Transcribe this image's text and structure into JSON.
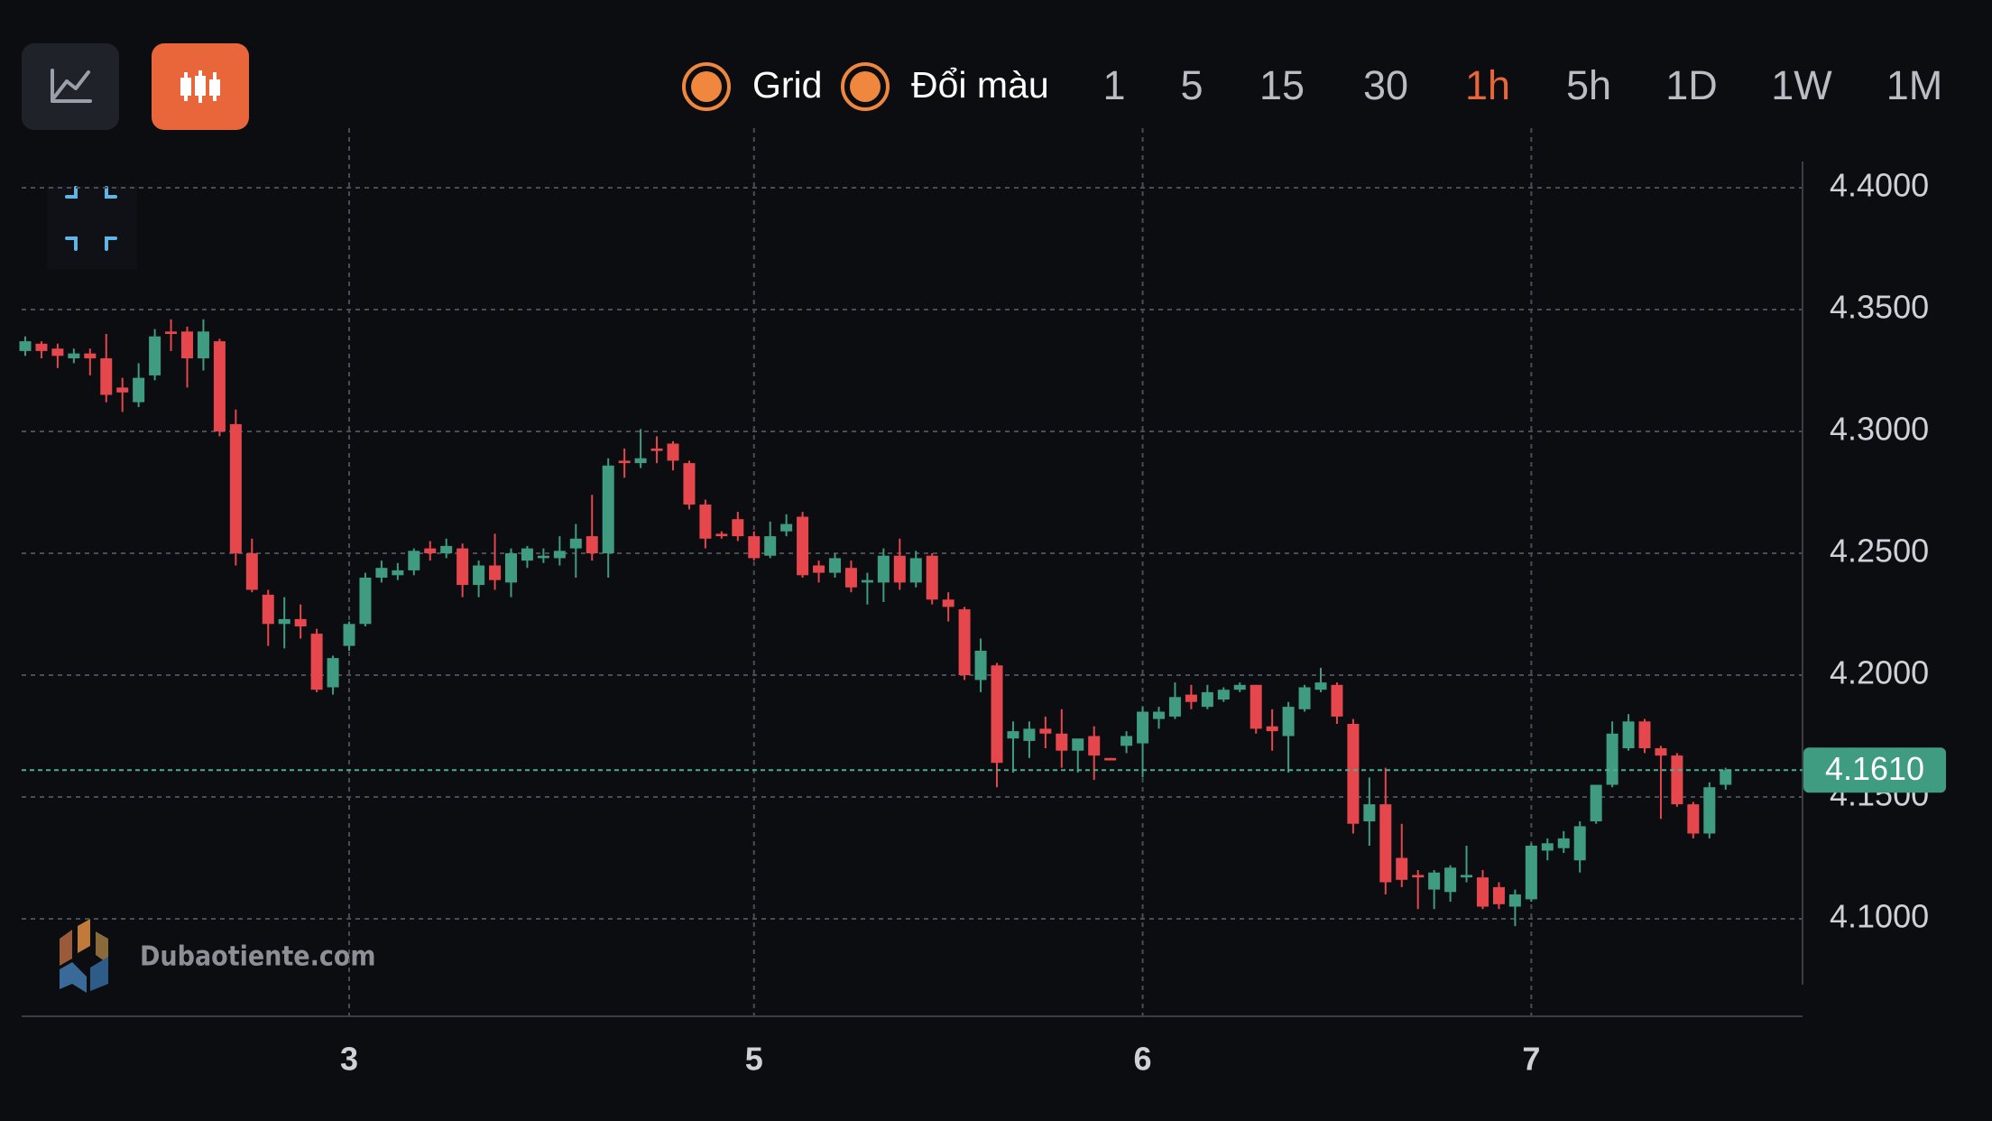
{
  "toolbar": {
    "toggles": [
      "Grid",
      "Đổi màu"
    ],
    "intervals": [
      {
        "label": "1",
        "active": false
      },
      {
        "label": "5",
        "active": false
      },
      {
        "label": "15",
        "active": false
      },
      {
        "label": "30",
        "active": false
      },
      {
        "label": "1h",
        "active": true
      },
      {
        "label": "5h",
        "active": false
      },
      {
        "label": "1D",
        "active": false
      },
      {
        "label": "1W",
        "active": false
      },
      {
        "label": "1M",
        "active": false
      }
    ]
  },
  "watermark": "Dubaotiente.com",
  "chart_data": {
    "type": "candlestick",
    "up_color": "#3f9c80",
    "down_color": "#e5474d",
    "grid": true,
    "categories": [
      null,
      null,
      null,
      null,
      null,
      null,
      null,
      null,
      null,
      null,
      null,
      null,
      null,
      null,
      null,
      null,
      null,
      null,
      null,
      null,
      "3",
      null,
      null,
      null,
      null,
      null,
      null,
      null,
      null,
      null,
      null,
      null,
      null,
      null,
      null,
      null,
      null,
      null,
      null,
      null,
      null,
      null,
      null,
      null,
      null,
      "5",
      null,
      null,
      null,
      null,
      null,
      null,
      null,
      null,
      null,
      null,
      null,
      null,
      null,
      null,
      null,
      null,
      null,
      null,
      null,
      null,
      null,
      null,
      null,
      "6",
      null,
      null,
      null,
      null,
      null,
      null,
      null,
      null,
      null,
      null,
      null,
      null,
      null,
      null,
      null,
      null,
      null,
      null,
      null,
      null,
      null,
      null,
      null,
      "7",
      null,
      null,
      null,
      null,
      null,
      null,
      null,
      null,
      null,
      null,
      null,
      null
    ],
    "open": [
      4.333,
      4.336,
      4.334,
      4.33,
      4.332,
      4.33,
      4.318,
      4.312,
      4.323,
      4.341,
      4.341,
      4.33,
      4.337,
      4.303,
      4.25,
      4.233,
      4.221,
      4.223,
      4.217,
      4.195,
      4.212,
      4.221,
      4.24,
      4.241,
      4.243,
      4.252,
      4.25,
      4.252,
      4.237,
      4.245,
      4.238,
      4.247,
      4.248,
      4.248,
      4.252,
      4.257,
      4.25,
      4.288,
      4.287,
      4.293,
      4.295,
      4.287,
      4.27,
      4.258,
      4.264,
      4.257,
      4.249,
      4.259,
      4.265,
      4.245,
      4.242,
      4.244,
      4.238,
      4.238,
      4.249,
      4.238,
      4.249,
      4.231,
      4.227,
      4.198,
      4.204,
      4.174,
      4.173,
      4.178,
      4.176,
      4.169,
      4.175,
      4.166,
      4.171,
      4.172,
      4.182,
      4.183,
      4.192,
      4.187,
      4.19,
      4.194,
      4.196,
      4.179,
      4.175,
      4.186,
      4.194,
      4.196,
      4.18,
      4.14,
      4.147,
      4.125,
      4.118,
      4.112,
      4.111,
      4.117,
      4.117,
      4.113,
      4.105,
      4.108,
      4.128,
      4.129,
      4.124,
      4.14,
      4.155,
      4.17,
      4.181,
      4.17,
      4.167,
      4.147,
      4.135,
      4.155
    ],
    "high": [
      4.339,
      4.337,
      4.336,
      4.334,
      4.334,
      4.34,
      4.322,
      4.328,
      4.342,
      4.346,
      4.343,
      4.346,
      4.338,
      4.309,
      4.256,
      4.235,
      4.232,
      4.229,
      4.219,
      4.208,
      4.222,
      4.242,
      4.247,
      4.246,
      4.252,
      4.255,
      4.256,
      4.254,
      4.247,
      4.258,
      4.252,
      4.253,
      4.252,
      4.257,
      4.262,
      4.274,
      4.289,
      4.293,
      4.301,
      4.298,
      4.296,
      4.288,
      4.272,
      4.259,
      4.267,
      4.259,
      4.263,
      4.266,
      4.267,
      4.247,
      4.25,
      4.247,
      4.242,
      4.252,
      4.256,
      4.251,
      4.25,
      4.234,
      4.228,
      4.215,
      4.205,
      4.181,
      4.181,
      4.183,
      4.186,
      4.173,
      4.179,
      4.166,
      4.177,
      4.187,
      4.187,
      4.197,
      4.196,
      4.196,
      4.195,
      4.197,
      4.196,
      4.186,
      4.189,
      4.196,
      4.203,
      4.197,
      4.182,
      4.158,
      4.162,
      4.139,
      4.12,
      4.12,
      4.122,
      4.13,
      4.12,
      4.115,
      4.112,
      4.131,
      4.133,
      4.136,
      4.14,
      4.155,
      4.181,
      4.184,
      4.182,
      4.171,
      4.168,
      4.148,
      4.156,
      4.162
    ],
    "low": [
      4.331,
      4.33,
      4.326,
      4.328,
      4.323,
      4.312,
      4.308,
      4.31,
      4.321,
      4.333,
      4.318,
      4.325,
      4.298,
      4.245,
      4.234,
      4.212,
      4.211,
      4.215,
      4.193,
      4.192,
      4.21,
      4.22,
      4.238,
      4.239,
      4.241,
      4.247,
      4.248,
      4.232,
      4.232,
      4.235,
      4.232,
      4.244,
      4.246,
      4.245,
      4.24,
      4.247,
      4.24,
      4.281,
      4.285,
      4.287,
      4.284,
      4.268,
      4.252,
      4.256,
      4.255,
      4.247,
      4.248,
      4.257,
      4.24,
      4.238,
      4.24,
      4.234,
      4.229,
      4.23,
      4.235,
      4.236,
      4.229,
      4.222,
      4.198,
      4.193,
      4.154,
      4.16,
      4.166,
      4.17,
      4.162,
      4.16,
      4.157,
      4.165,
      4.168,
      4.158,
      4.178,
      4.182,
      4.186,
      4.186,
      4.189,
      4.193,
      4.176,
      4.169,
      4.16,
      4.185,
      4.193,
      4.18,
      4.135,
      4.13,
      4.11,
      4.113,
      4.104,
      4.104,
      4.107,
      4.115,
      4.104,
      4.104,
      4.097,
      4.107,
      4.124,
      4.127,
      4.119,
      4.139,
      4.154,
      4.169,
      4.168,
      4.141,
      4.146,
      4.133,
      4.133,
      4.153
    ],
    "close": [
      4.337,
      4.333,
      4.331,
      4.332,
      4.33,
      4.315,
      4.316,
      4.322,
      4.339,
      4.34,
      4.33,
      4.341,
      4.3,
      4.25,
      4.235,
      4.221,
      4.223,
      4.22,
      4.194,
      4.207,
      4.221,
      4.24,
      4.244,
      4.243,
      4.251,
      4.25,
      4.253,
      4.237,
      4.245,
      4.239,
      4.25,
      4.252,
      4.249,
      4.251,
      4.256,
      4.25,
      4.286,
      4.287,
      4.289,
      4.292,
      4.288,
      4.27,
      4.256,
      4.257,
      4.257,
      4.248,
      4.257,
      4.262,
      4.241,
      4.242,
      4.248,
      4.236,
      4.239,
      4.249,
      4.238,
      4.248,
      4.231,
      4.228,
      4.2,
      4.21,
      4.164,
      4.177,
      4.178,
      4.176,
      4.169,
      4.174,
      4.167,
      4.165,
      4.175,
      4.185,
      4.185,
      4.191,
      4.189,
      4.193,
      4.194,
      4.196,
      4.178,
      4.177,
      4.187,
      4.195,
      4.197,
      4.183,
      4.139,
      4.147,
      4.115,
      4.116,
      4.117,
      4.119,
      4.121,
      4.118,
      4.105,
      4.106,
      4.11,
      4.13,
      4.131,
      4.133,
      4.138,
      4.155,
      4.176,
      4.181,
      4.17,
      4.167,
      4.147,
      4.135,
      4.154,
      4.161
    ],
    "ylim": [
      4.06,
      4.41
    ],
    "yticks": [
      {
        "value": 4.1,
        "label": "4.1000"
      },
      {
        "value": 4.15,
        "label": "4.1500"
      },
      {
        "value": 4.2,
        "label": "4.2000"
      },
      {
        "value": 4.25,
        "label": "4.2500"
      },
      {
        "value": 4.3,
        "label": "4.3000"
      },
      {
        "value": 4.35,
        "label": "4.3500"
      },
      {
        "value": 4.4,
        "label": "4.4000"
      }
    ],
    "last_price": {
      "value": 4.161,
      "label": "4.1610"
    }
  }
}
